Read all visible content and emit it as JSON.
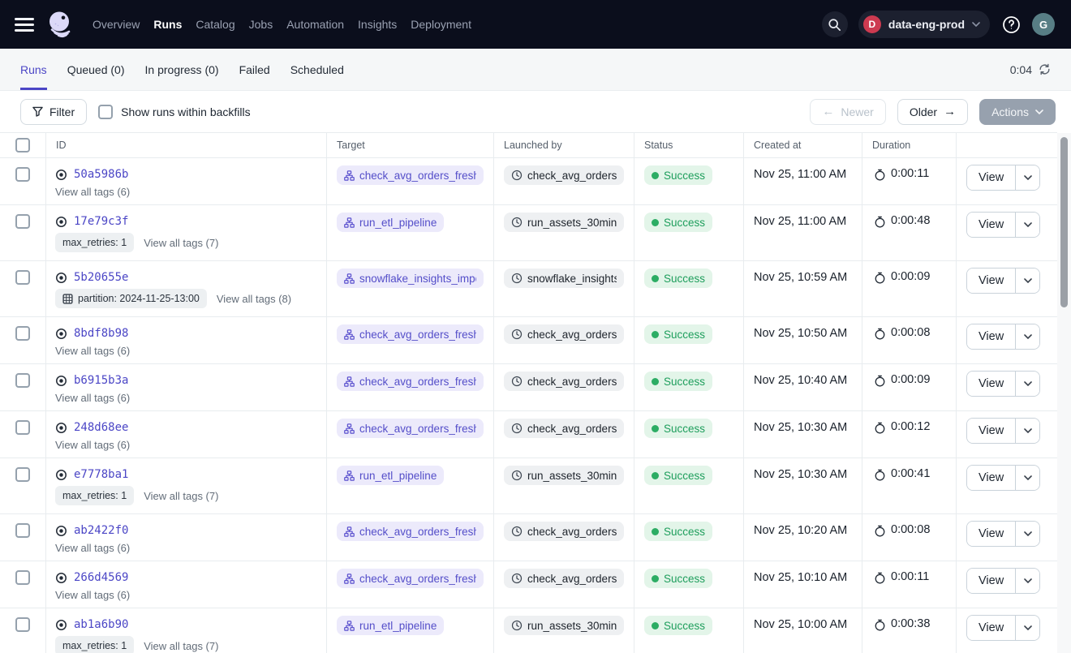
{
  "colors": {
    "accent_purple": "#4b46c6",
    "success_green_text": "#1e9e5c",
    "success_green_dot": "#2cad64",
    "topnav_background": "#0b0e1c",
    "workspace_badge_red": "#cd3a50"
  },
  "topnav": {
    "nav_items": [
      {
        "label": "Overview",
        "active": false
      },
      {
        "label": "Runs",
        "active": true
      },
      {
        "label": "Catalog",
        "active": false
      },
      {
        "label": "Jobs",
        "active": false
      },
      {
        "label": "Automation",
        "active": false
      },
      {
        "label": "Insights",
        "active": false
      },
      {
        "label": "Deployment",
        "active": false
      }
    ],
    "workspace": {
      "initial": "D",
      "name": "data-eng-prod"
    },
    "user_initial": "G"
  },
  "tabs": {
    "items": [
      {
        "label": "Runs",
        "active": true
      },
      {
        "label": "Queued (0)",
        "active": false
      },
      {
        "label": "In progress (0)",
        "active": false
      },
      {
        "label": "Failed",
        "active": false
      },
      {
        "label": "Scheduled",
        "active": false
      }
    ],
    "refresh_timer": "0:04"
  },
  "toolbar": {
    "filter_label": "Filter",
    "backfills_checkbox_label": "Show runs within backfills",
    "backfills_checked": false,
    "newer_label": "Newer",
    "older_label": "Older",
    "actions_label": "Actions"
  },
  "table": {
    "columns": [
      "ID",
      "Target",
      "Launched by",
      "Status",
      "Created at",
      "Duration"
    ],
    "view_button_label": "View",
    "rows": [
      {
        "id": "50a5986b",
        "tag": null,
        "view_all_tags": "View all tags (6)",
        "target": "check_avg_orders_freshne",
        "launched_by": "check_avg_orders_f…",
        "status": "Success",
        "created_at": "Nov 25, 11:00 AM",
        "duration": "0:00:11"
      },
      {
        "id": "17e79c3f",
        "tag": {
          "icon": null,
          "label": "max_retries: 1"
        },
        "view_all_tags": "View all tags (7)",
        "target": "run_etl_pipeline",
        "launched_by": "run_assets_30min",
        "status": "Success",
        "created_at": "Nov 25, 11:00 AM",
        "duration": "0:00:48"
      },
      {
        "id": "5b20655e",
        "tag": {
          "icon": "grid",
          "label": "partition: 2024-11-25-13:00"
        },
        "view_all_tags": "View all tags (8)",
        "target": "snowflake_insights_import",
        "launched_by": "snowflake_insights_…",
        "status": "Success",
        "created_at": "Nov 25, 10:59 AM",
        "duration": "0:00:09"
      },
      {
        "id": "8bdf8b98",
        "tag": null,
        "view_all_tags": "View all tags (6)",
        "target": "check_avg_orders_freshne",
        "launched_by": "check_avg_orders_f…",
        "status": "Success",
        "created_at": "Nov 25, 10:50 AM",
        "duration": "0:00:08"
      },
      {
        "id": "b6915b3a",
        "tag": null,
        "view_all_tags": "View all tags (6)",
        "target": "check_avg_orders_freshne",
        "launched_by": "check_avg_orders_f…",
        "status": "Success",
        "created_at": "Nov 25, 10:40 AM",
        "duration": "0:00:09"
      },
      {
        "id": "248d68ee",
        "tag": null,
        "view_all_tags": "View all tags (6)",
        "target": "check_avg_orders_freshne",
        "launched_by": "check_avg_orders_f…",
        "status": "Success",
        "created_at": "Nov 25, 10:30 AM",
        "duration": "0:00:12"
      },
      {
        "id": "e7778ba1",
        "tag": {
          "icon": null,
          "label": "max_retries: 1"
        },
        "view_all_tags": "View all tags (7)",
        "target": "run_etl_pipeline",
        "launched_by": "run_assets_30min",
        "status": "Success",
        "created_at": "Nov 25, 10:30 AM",
        "duration": "0:00:41"
      },
      {
        "id": "ab2422f0",
        "tag": null,
        "view_all_tags": "View all tags (6)",
        "target": "check_avg_orders_freshne",
        "launched_by": "check_avg_orders_f…",
        "status": "Success",
        "created_at": "Nov 25, 10:20 AM",
        "duration": "0:00:08"
      },
      {
        "id": "266d4569",
        "tag": null,
        "view_all_tags": "View all tags (6)",
        "target": "check_avg_orders_freshne",
        "launched_by": "check_avg_orders_f…",
        "status": "Success",
        "created_at": "Nov 25, 10:10 AM",
        "duration": "0:00:11"
      },
      {
        "id": "ab1a6b90",
        "tag": {
          "icon": null,
          "label": "max_retries: 1"
        },
        "view_all_tags": "View all tags (7)",
        "target": "run_etl_pipeline",
        "launched_by": "run_assets_30min",
        "status": "Success",
        "created_at": "Nov 25, 10:00 AM",
        "duration": "0:00:38"
      }
    ]
  }
}
